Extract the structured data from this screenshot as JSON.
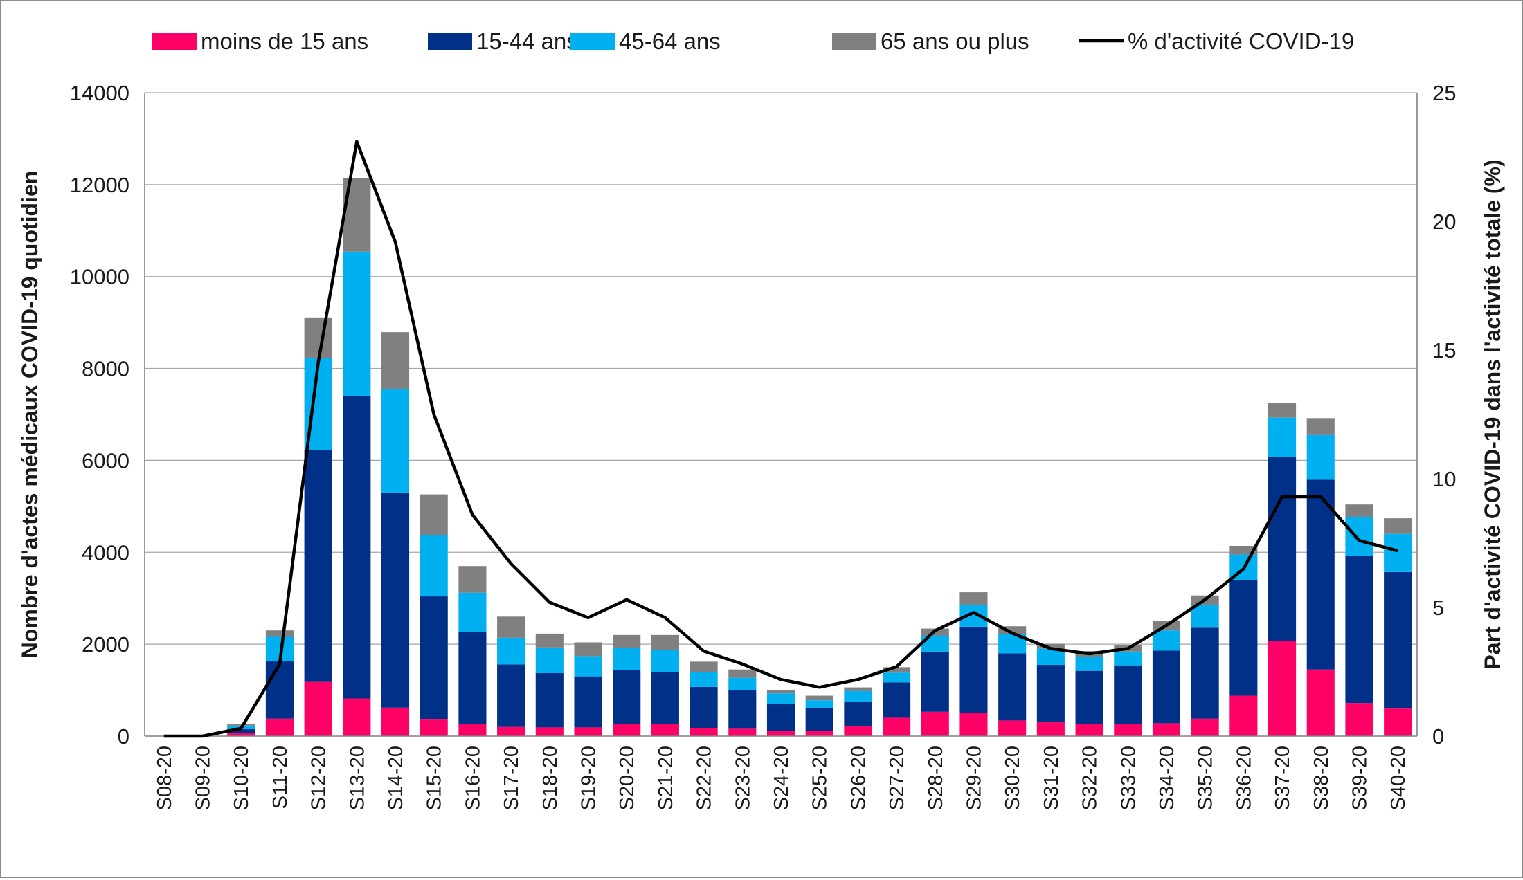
{
  "chart_data": {
    "type": "bar",
    "stacked": true,
    "title": "",
    "categories": [
      "S08-20",
      "S09-20",
      "S10-20",
      "S11-20",
      "S12-20",
      "S13-20",
      "S14-20",
      "S15-20",
      "S16-20",
      "S17-20",
      "S18-20",
      "S19-20",
      "S20-20",
      "S21-20",
      "S22-20",
      "S23-20",
      "S24-20",
      "S25-20",
      "S26-20",
      "S27-20",
      "S28-20",
      "S29-20",
      "S30-20",
      "S31-20",
      "S32-20",
      "S33-20",
      "S34-20",
      "S35-20",
      "S36-20",
      "S37-20",
      "S38-20",
      "S39-20",
      "S40-20"
    ],
    "series": [
      {
        "name": "moins de 15 ans",
        "color": "#ff0066",
        "values": [
          0,
          0,
          60,
          380,
          1180,
          820,
          620,
          360,
          270,
          200,
          190,
          190,
          260,
          260,
          170,
          160,
          120,
          110,
          210,
          400,
          530,
          500,
          340,
          300,
          260,
          260,
          280,
          380,
          880,
          2070,
          1450,
          720,
          600
        ]
      },
      {
        "name": "15-44 ans",
        "color": "#003087",
        "values": [
          0,
          0,
          90,
          1260,
          5050,
          6580,
          4680,
          2680,
          2000,
          1360,
          1180,
          1110,
          1180,
          1140,
          900,
          840,
          580,
          500,
          530,
          770,
          1310,
          1880,
          1460,
          1250,
          1160,
          1280,
          1580,
          1980,
          2510,
          4000,
          4130,
          3200,
          2970
        ]
      },
      {
        "name": "45-64 ans",
        "color": "#00b0f0",
        "values": [
          0,
          0,
          80,
          520,
          1990,
          3140,
          2250,
          1340,
          850,
          580,
          560,
          440,
          480,
          480,
          330,
          270,
          230,
          170,
          240,
          210,
          350,
          480,
          420,
          350,
          300,
          300,
          440,
          500,
          560,
          860,
          970,
          840,
          830
        ]
      },
      {
        "name": "65 ans ou plus",
        "color": "#808080",
        "values": [
          0,
          0,
          30,
          140,
          890,
          1600,
          1240,
          880,
          580,
          460,
          300,
          300,
          280,
          320,
          220,
          180,
          70,
          100,
          80,
          120,
          150,
          270,
          170,
          110,
          130,
          140,
          200,
          200,
          190,
          320,
          370,
          280,
          340
        ]
      }
    ],
    "line": {
      "name": "% d'activité COVID-19",
      "color": "#000000",
      "values": [
        0,
        0,
        0.3,
        2.8,
        14.5,
        23.1,
        19.2,
        12.5,
        8.6,
        6.7,
        5.2,
        4.6,
        5.3,
        4.6,
        3.3,
        2.8,
        2.2,
        1.9,
        2.2,
        2.7,
        4.1,
        4.8,
        4.0,
        3.4,
        3.2,
        3.4,
        4.3,
        5.3,
        6.5,
        9.3,
        9.3,
        7.6,
        7.2
      ]
    },
    "ylabel": "Nombre d'actes médicaux COVID-19 quotidien",
    "y2label": "Part d'activité COVID-19 dans l'activité totale (%)",
    "ylim": [
      0,
      14000
    ],
    "y2lim": [
      0,
      25
    ],
    "yticks": [
      "0",
      "2000",
      "4000",
      "6000",
      "8000",
      "10000",
      "12000",
      "14000"
    ],
    "y2ticks": [
      "0",
      "5",
      "10",
      "15",
      "20",
      "25"
    ],
    "grid": true,
    "legend_position": "top"
  }
}
